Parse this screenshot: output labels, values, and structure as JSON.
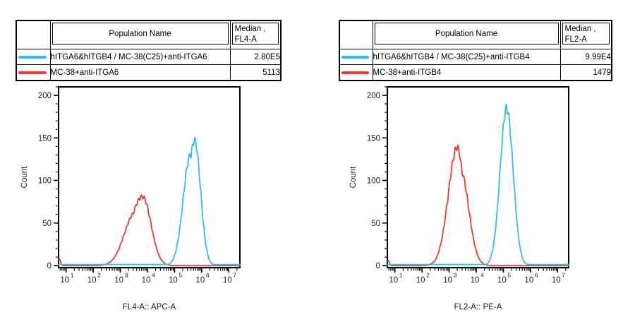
{
  "colors": {
    "series_cyan": "#2EBFF0",
    "series_red": "#F7342F",
    "table_header_bg": "#C0C0C0",
    "border": "#000000",
    "axis_text": "#1a1a1a"
  },
  "panels": [
    {
      "table": {
        "population_header": "Population Name",
        "median_header_line1": "Median ,",
        "median_header_line2": "FL4-A",
        "rows": [
          {
            "color": "#2EBFF0",
            "name": "hITGA6&hITGB4 / MC-38(C25)+anti-ITGA6",
            "median": "2.80E5"
          },
          {
            "color": "#F7342F",
            "name": "MC-38+anti-ITGA6",
            "median": "5113"
          }
        ]
      }
    },
    {
      "table": {
        "population_header": "Population Name",
        "median_header_line1": "Median ,",
        "median_header_line2": "FL2-A",
        "rows": [
          {
            "color": "#2EBFF0",
            "name": "hITGA6&hITGB4 / MC-38(C25)+anti-ITGB4",
            "median": "9.99E4"
          },
          {
            "color": "#F7342F",
            "name": "MC-38+anti-ITGB4",
            "median": "1479"
          }
        ]
      }
    }
  ],
  "chart_data": [
    {
      "type": "line",
      "title": "",
      "xlabel": "FL4-A:: APC-A",
      "ylabel": "Count",
      "x_scale": "log10",
      "x_tick_base": "10",
      "x_tick_exponents": [
        1,
        2,
        3,
        4,
        5,
        6,
        7
      ],
      "xlim_log10": [
        0.72,
        7.41
      ],
      "ylim": [
        0,
        210
      ],
      "y_major_ticks": [
        0,
        50,
        100,
        150,
        200
      ],
      "y_minor_step": 10,
      "grid": false,
      "legend_position": "none",
      "series": [
        {
          "name": "MC-38+anti-ITGA6",
          "color": "#F7342F",
          "median_stat": "5113",
          "apex": {
            "x": 6600,
            "count": 81
          },
          "components": [
            {
              "log_center": 3.82,
              "height": 81,
              "sigma_left": 0.46,
              "sigma_right": 0.31
            },
            {
              "log_center": 3.55,
              "height": 62,
              "sigma_left": 0.4,
              "sigma_right": 0.28
            }
          ],
          "edge_spike_height": 8,
          "baseline": 0
        },
        {
          "name": "hITGA6&hITGB4 / MC-38(C25)+anti-ITGA6",
          "color": "#2EBFF0",
          "median_stat": "2.80E5",
          "apex": {
            "x": 550000,
            "count": 147
          },
          "components": [
            {
              "log_center": 5.74,
              "height": 147,
              "sigma_left": 0.25,
              "sigma_right": 0.22
            },
            {
              "log_center": 5.59,
              "height": 130,
              "sigma_left": 0.27,
              "sigma_right": 0.2
            }
          ],
          "edge_spike_height": 0,
          "baseline": 1.2
        }
      ]
    },
    {
      "type": "line",
      "title": "",
      "xlabel": "FL2-A:: PE-A",
      "ylabel": "Count",
      "x_scale": "log10",
      "x_tick_base": "10",
      "x_tick_exponents": [
        1,
        2,
        3,
        4,
        5,
        6,
        7
      ],
      "xlim_log10": [
        0.72,
        7.41
      ],
      "ylim": [
        0,
        210
      ],
      "y_major_ticks": [
        0,
        50,
        100,
        150,
        200
      ],
      "y_minor_step": 10,
      "grid": false,
      "legend_position": "none",
      "series": [
        {
          "name": "MC-38+anti-ITGB4",
          "color": "#F7342F",
          "median_stat": "1479",
          "apex": {
            "x": 2000,
            "count": 139
          },
          "components": [
            {
              "log_center": 3.3,
              "height": 139,
              "sigma_left": 0.33,
              "sigma_right": 0.25
            },
            {
              "log_center": 3.42,
              "height": 112,
              "sigma_left": 0.22,
              "sigma_right": 0.3
            }
          ],
          "edge_spike_height": 6,
          "baseline": 0
        },
        {
          "name": "hITGA6&hITGB4 / MC-38(C25)+anti-ITGB4",
          "color": "#2EBFF0",
          "median_stat": "9.99E4",
          "apex": {
            "x": 130000,
            "count": 185
          },
          "components": [
            {
              "log_center": 5.12,
              "height": 185,
              "sigma_left": 0.24,
              "sigma_right": 0.24
            }
          ],
          "edge_spike_height": 0,
          "baseline": 1.2
        }
      ]
    }
  ]
}
